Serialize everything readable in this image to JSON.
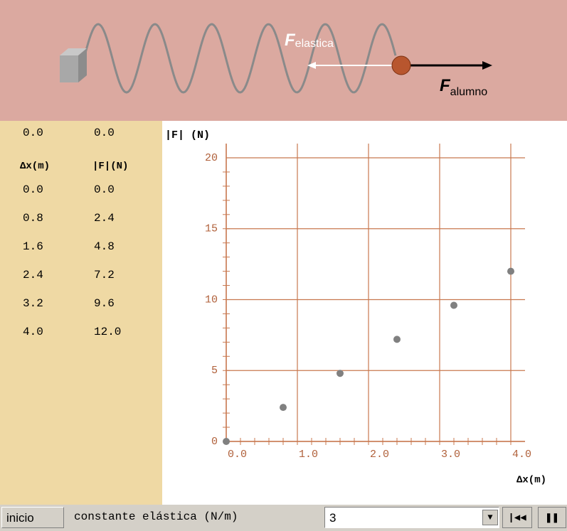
{
  "scene": {
    "force_spring": "F",
    "force_spring_sub": "elastica",
    "force_user": "F",
    "force_user_sub": "alumno"
  },
  "readout": {
    "dx": "0.0",
    "f": "0.0"
  },
  "table": {
    "headers": [
      "Δx(m)",
      "|F|(N)"
    ],
    "rows": [
      [
        "0.0",
        "0.0"
      ],
      [
        "0.8",
        "2.4"
      ],
      [
        "1.6",
        "4.8"
      ],
      [
        "2.4",
        "7.2"
      ],
      [
        "3.2",
        "9.6"
      ],
      [
        "4.0",
        "12.0"
      ]
    ]
  },
  "chart_data": {
    "type": "scatter",
    "y_label": "|F| (N)",
    "x_label": "Δx(m)",
    "x": [
      0.0,
      0.8,
      1.6,
      2.4,
      3.2,
      4.0
    ],
    "values": [
      0.0,
      2.4,
      4.8,
      7.2,
      9.6,
      12.0
    ],
    "color": "#808080",
    "xlim": [
      0,
      4.2
    ],
    "ylim": [
      0,
      20
    ],
    "xticks": [
      {
        "value": 0,
        "label": "0.0"
      },
      {
        "value": 1,
        "label": "1.0"
      },
      {
        "value": 2,
        "label": "2.0"
      },
      {
        "value": 3,
        "label": "3.0"
      },
      {
        "value": 4,
        "label": "4.0"
      }
    ],
    "yticks": [
      0,
      5,
      10,
      15,
      20
    ],
    "grid": true,
    "grid_color": "#c8784f"
  },
  "controls": {
    "reset": "inicio",
    "param_label": "constante elástica (N/m)",
    "param_value": "3"
  }
}
